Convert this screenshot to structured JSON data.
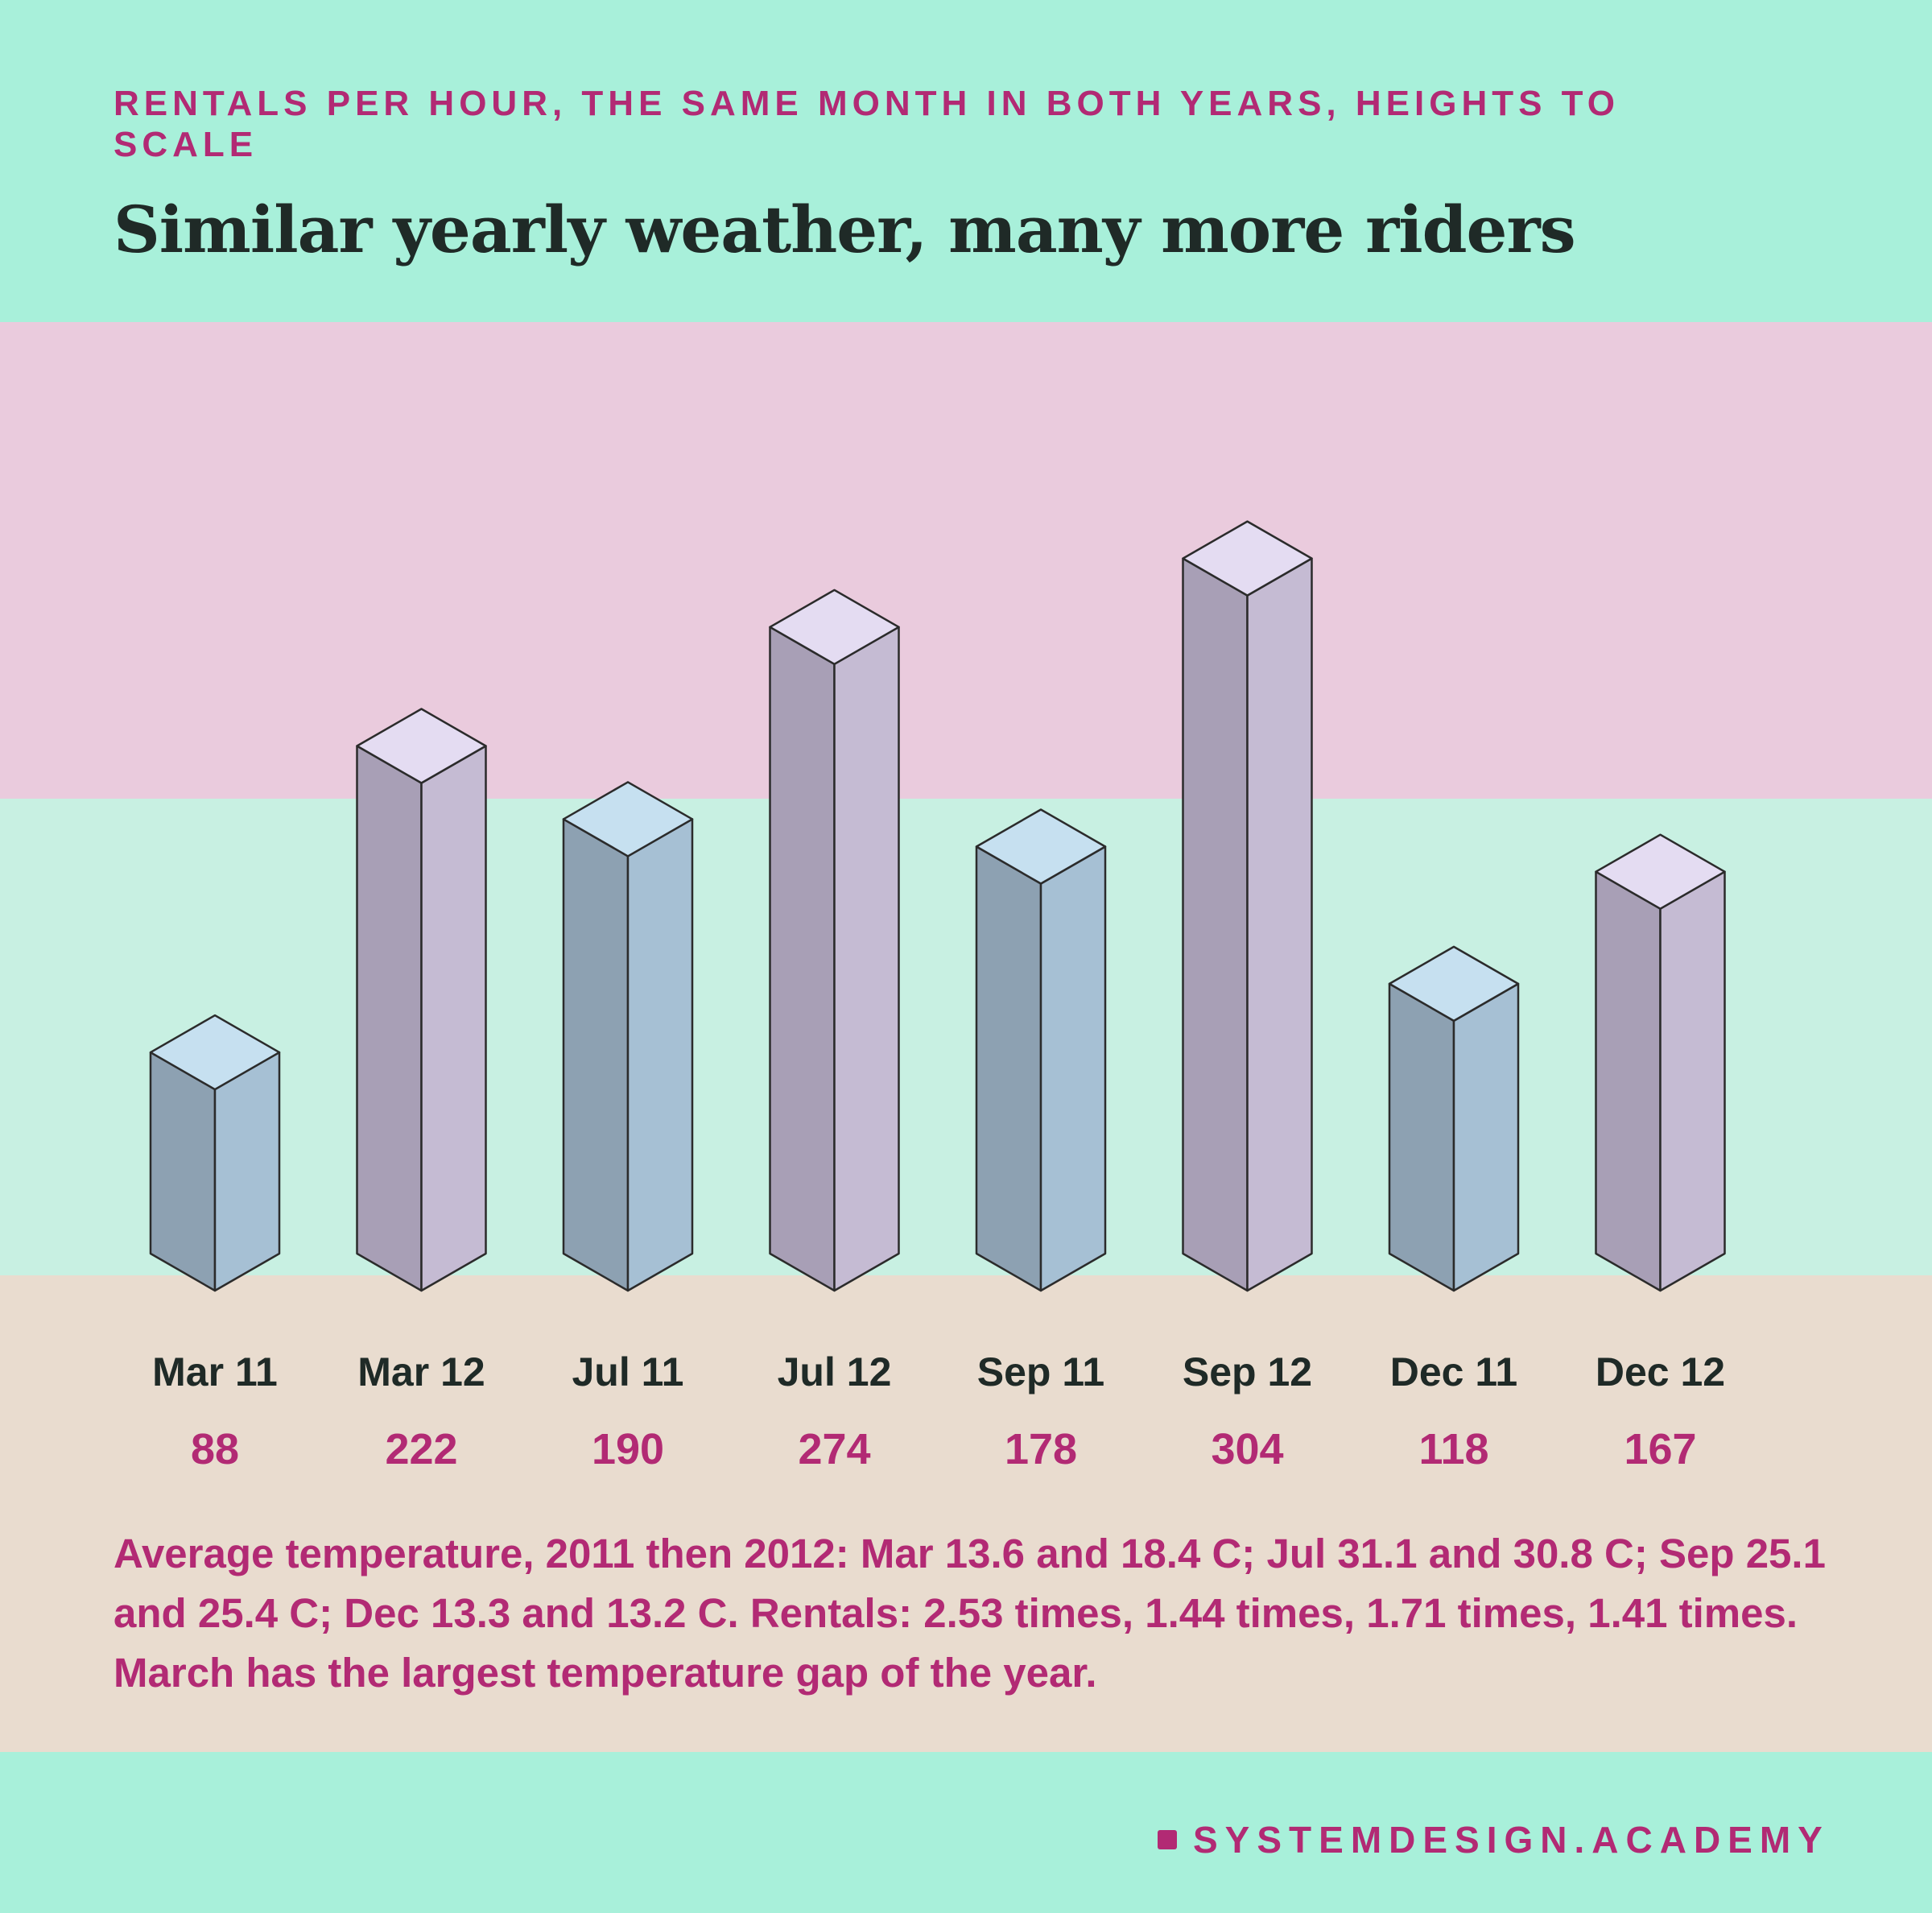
{
  "header": {
    "eyebrow": "RENTALS PER HOUR, THE SAME MONTH IN BOTH YEARS, HEIGHTS TO SCALE",
    "title": "Similar yearly weather, many more riders"
  },
  "chart_data": {
    "type": "bar",
    "categories": [
      "Mar 11",
      "Mar 12",
      "Jul 11",
      "Jul 12",
      "Sep 11",
      "Sep 12",
      "Dec 11",
      "Dec 12"
    ],
    "values": [
      88,
      222,
      190,
      274,
      178,
      304,
      118,
      167
    ],
    "value_labels": [
      "88",
      "222",
      "190",
      "274",
      "178",
      "304",
      "118",
      "167"
    ],
    "ylim": [
      0,
      304
    ],
    "style": "isometric-3d-columns",
    "series_colors": {
      "2011": {
        "top": "#c6e0f0",
        "left": "#8da1b2",
        "right": "#a6c0d4"
      },
      "2012": {
        "top": "#e4dcf2",
        "left": "#a89fb6",
        "right": "#c5bbd3"
      }
    },
    "outline_color": "#2b2b2b"
  },
  "caption": "Average temperature, 2011 then 2012: Mar 13.6 and 18.4 C; Jul 31.1 and 30.8 C; Sep 25.1 and 25.4 C; Dec 13.3 and 13.2 C. Rentals: 2.53 times, 1.44 times, 1.71 times, 1.41 times. March has the largest temperature gap of the year.",
  "footer": {
    "brand": "SYSTEMDESIGN.ACADEMY"
  },
  "colors": {
    "accent": "#b22a74",
    "ink": "#1f2a27",
    "band_top": "#a8f0da",
    "band_pink": "#eacbdd",
    "band_mint": "#c8f0e2",
    "band_beige": "#e9dccf"
  }
}
